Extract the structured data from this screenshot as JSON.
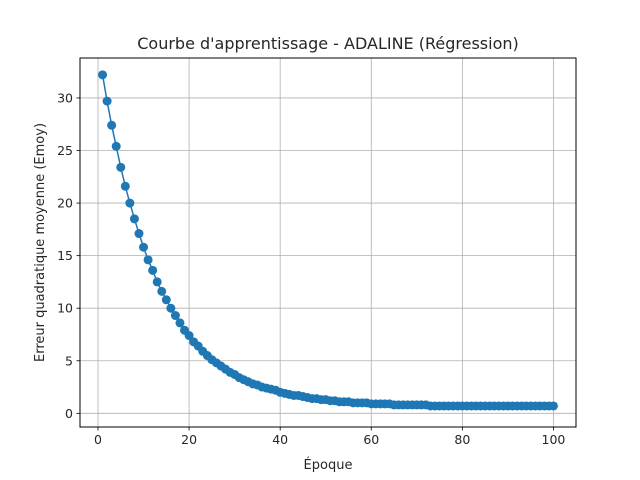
{
  "chart_data": {
    "type": "line",
    "title": "Courbe d'apprentissage - ADALINE (Régression)",
    "xlabel": "Époque",
    "ylabel": "Erreur quadratique moyenne (Emoy)",
    "xlim": [
      -3.95,
      104.95
    ],
    "ylim": [
      -1.3,
      33.8
    ],
    "xticks": [
      0,
      20,
      40,
      60,
      80,
      100
    ],
    "yticks": [
      0,
      5,
      10,
      15,
      20,
      25,
      30
    ],
    "grid": true,
    "marker": "circle",
    "color": "#1f77b4",
    "series": [
      {
        "x": [
          1,
          2,
          3,
          4,
          5,
          6,
          7,
          8,
          9,
          10,
          11,
          12,
          13,
          14,
          15,
          16,
          17,
          18,
          19,
          20,
          21,
          22,
          23,
          24,
          25,
          26,
          27,
          28,
          29,
          30,
          31,
          32,
          33,
          34,
          35,
          36,
          37,
          38,
          39,
          40,
          41,
          42,
          43,
          44,
          45,
          46,
          47,
          48,
          49,
          50,
          51,
          52,
          53,
          54,
          55,
          56,
          57,
          58,
          59,
          60,
          61,
          62,
          63,
          64,
          65,
          66,
          67,
          68,
          69,
          70,
          71,
          72,
          73,
          74,
          75,
          76,
          77,
          78,
          79,
          80,
          81,
          82,
          83,
          84,
          85,
          86,
          87,
          88,
          89,
          90,
          91,
          92,
          93,
          94,
          95,
          96,
          97,
          98,
          99,
          100
        ],
        "y": [
          32.2,
          29.7,
          27.4,
          25.4,
          23.4,
          21.6,
          20.0,
          18.5,
          17.1,
          15.8,
          14.6,
          13.6,
          12.5,
          11.6,
          10.8,
          10.0,
          9.3,
          8.6,
          7.9,
          7.4,
          6.8,
          6.4,
          5.9,
          5.5,
          5.1,
          4.8,
          4.5,
          4.2,
          3.9,
          3.7,
          3.4,
          3.2,
          3.0,
          2.8,
          2.7,
          2.5,
          2.4,
          2.3,
          2.2,
          2.0,
          1.9,
          1.8,
          1.7,
          1.7,
          1.6,
          1.5,
          1.4,
          1.4,
          1.3,
          1.3,
          1.2,
          1.2,
          1.1,
          1.1,
          1.1,
          1.0,
          1.0,
          1.0,
          1.0,
          0.9,
          0.9,
          0.9,
          0.9,
          0.9,
          0.8,
          0.8,
          0.8,
          0.8,
          0.8,
          0.8,
          0.8,
          0.8,
          0.7,
          0.7,
          0.7,
          0.7,
          0.7,
          0.7,
          0.7,
          0.7,
          0.7,
          0.7,
          0.7,
          0.7,
          0.7,
          0.7,
          0.7,
          0.7,
          0.7,
          0.7,
          0.7,
          0.7,
          0.7,
          0.7,
          0.7,
          0.7,
          0.7,
          0.7,
          0.7,
          0.7
        ]
      }
    ]
  }
}
